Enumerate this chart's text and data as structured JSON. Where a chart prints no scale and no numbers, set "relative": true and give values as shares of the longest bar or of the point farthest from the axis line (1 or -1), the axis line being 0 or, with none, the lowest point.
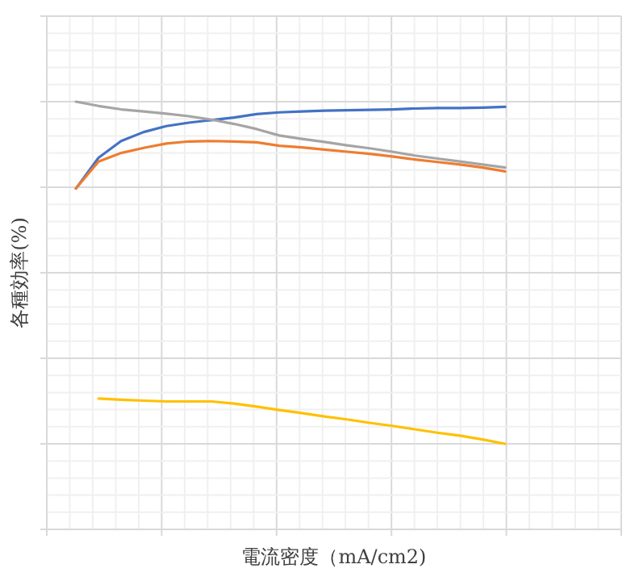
{
  "chart_data": {
    "type": "line",
    "relative": true,
    "xlabel": "電流密度（mA/cm2)",
    "ylabel": "各種効率(%)",
    "grid": true,
    "marker": "none",
    "line_style": "solid",
    "categories": [
      null,
      null,
      null,
      null,
      null,
      null,
      null,
      null,
      null,
      null,
      null,
      null,
      null,
      null,
      null,
      null,
      null,
      null,
      null,
      null
    ],
    "series": [
      {
        "color": "#4472c4",
        "values": [
          0.797,
          0.869,
          0.908,
          0.929,
          0.943,
          0.951,
          0.957,
          0.963,
          0.971,
          0.975,
          0.977,
          0.979,
          0.98,
          0.981,
          0.982,
          0.984,
          0.985,
          0.985,
          0.986,
          0.988
        ]
      },
      {
        "color": "#ed7d31",
        "values": [
          0.797,
          0.86,
          0.88,
          0.892,
          0.902,
          0.907,
          0.908,
          0.907,
          0.905,
          0.897,
          0.893,
          0.888,
          0.883,
          0.878,
          0.872,
          0.865,
          0.859,
          0.853,
          0.846,
          0.837
        ]
      },
      {
        "color": "#a5a5a5",
        "values": [
          1,
          0.99,
          0.982,
          0.977,
          0.972,
          0.966,
          0.958,
          0.948,
          0.936,
          0.921,
          0.913,
          0.906,
          0.898,
          0.891,
          0.883,
          0.874,
          0.867,
          0.86,
          0.853,
          0.846
        ]
      },
      {
        "color": "#ffc000",
        "values": [
          null,
          0.306,
          0.303,
          0.301,
          0.299,
          0.299,
          0.299,
          0.294,
          0.287,
          0.279,
          0.272,
          0.264,
          0.257,
          0.249,
          0.242,
          0.234,
          0.226,
          0.219,
          0.21,
          0.2
        ]
      }
    ]
  }
}
